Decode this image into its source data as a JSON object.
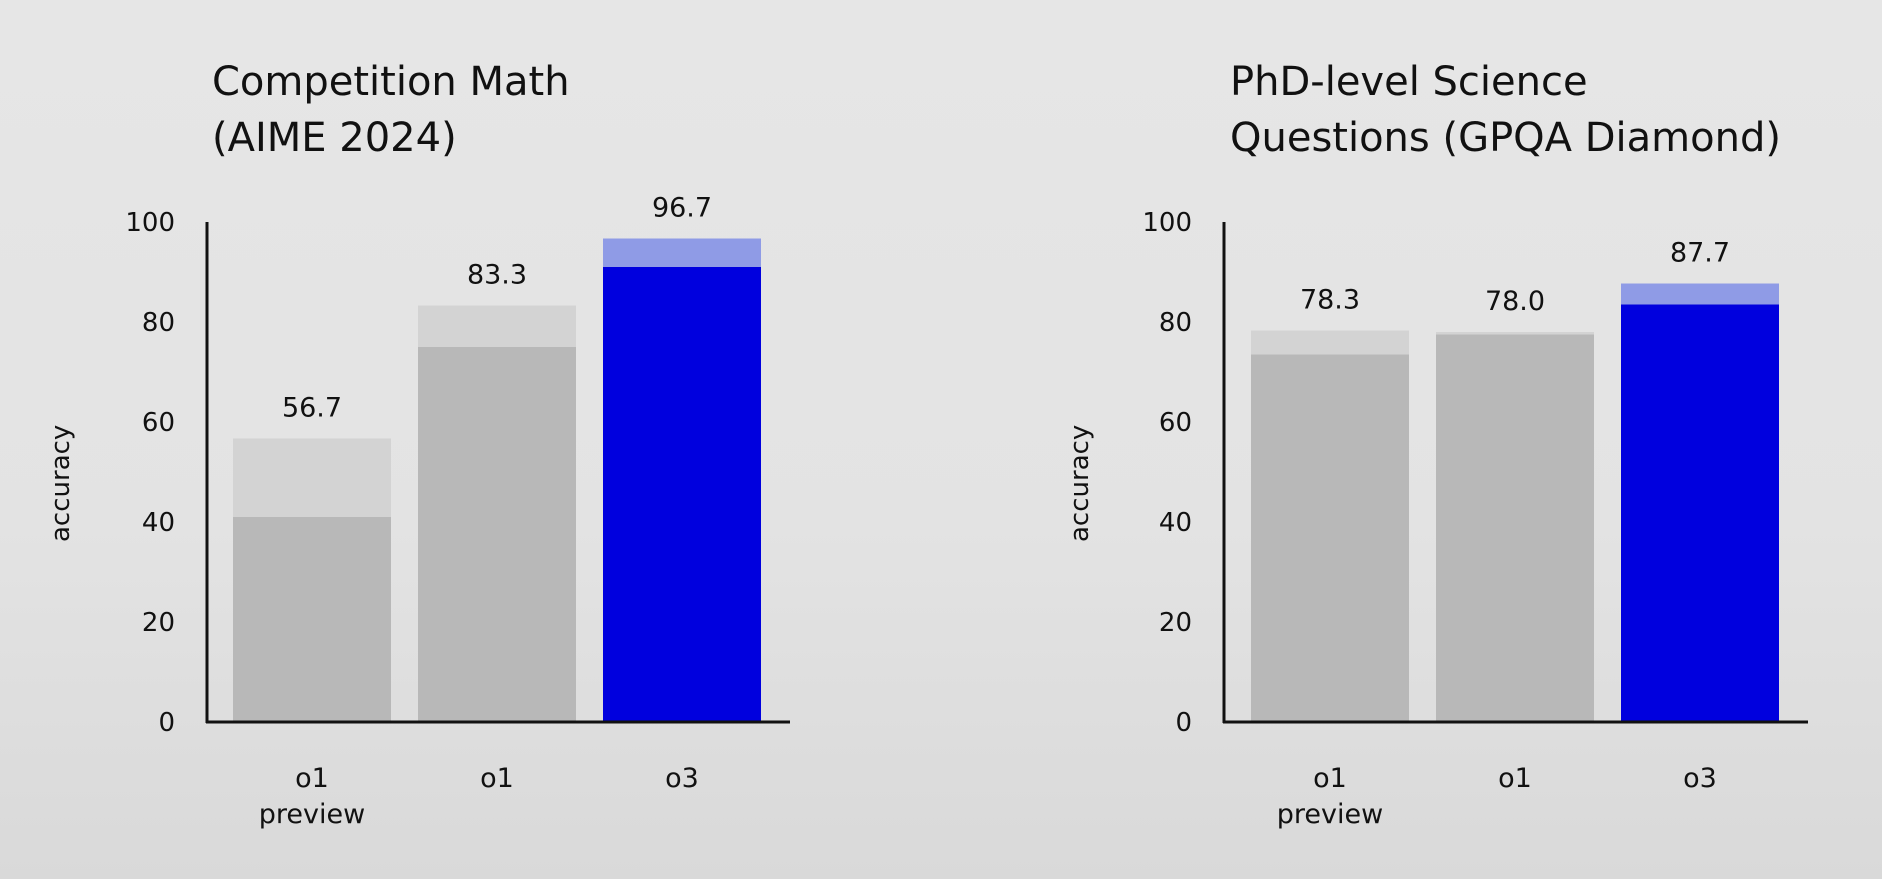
{
  "chart_data": [
    {
      "type": "bar",
      "title": "Competition Math\n(AIME 2024)",
      "ylabel": "accuracy",
      "ylim": [
        0,
        100
      ],
      "yticks": [
        0,
        20,
        40,
        60,
        80,
        100
      ],
      "categories": [
        "o1\npreview",
        "o1",
        "o3"
      ],
      "values": [
        56.7,
        83.3,
        96.7
      ],
      "value_labels": [
        "56.7",
        "83.3",
        "96.7"
      ],
      "lower_values": [
        41,
        75,
        91
      ],
      "grid": false,
      "colors": {
        "base": [
          "#b8b8b8",
          "#b8b8b8",
          "#0000de"
        ],
        "top": [
          "#d3d3d3",
          "#d3d3d3",
          "#8f9be6"
        ]
      }
    },
    {
      "type": "bar",
      "title": "PhD-level Science\nQuestions (GPQA Diamond)",
      "ylabel": "accuracy",
      "ylim": [
        0,
        100
      ],
      "yticks": [
        0,
        20,
        40,
        60,
        80,
        100
      ],
      "categories": [
        "o1\npreview",
        "o1",
        "o3"
      ],
      "values": [
        78.3,
        78.0,
        87.7
      ],
      "value_labels": [
        "78.3",
        "78.0",
        "87.7"
      ],
      "lower_values": [
        73.5,
        77.5,
        83.5
      ],
      "grid": false,
      "colors": {
        "base": [
          "#b8b8b8",
          "#b8b8b8",
          "#0000de"
        ],
        "top": [
          "#d3d3d3",
          "#d3d3d3",
          "#8f9be6"
        ]
      }
    }
  ]
}
